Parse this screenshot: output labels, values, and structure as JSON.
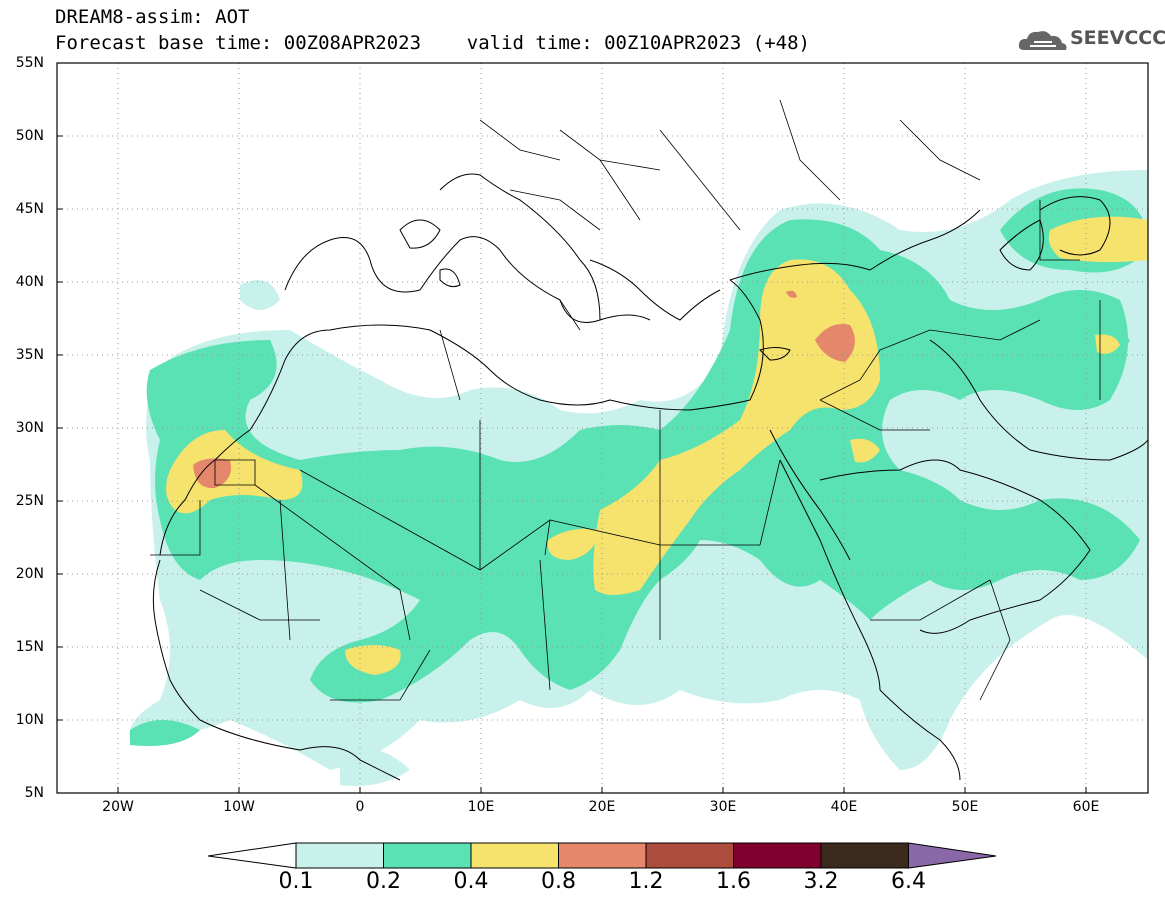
{
  "header": {
    "title_line1": "DREAM8-assim: AOT",
    "title_line2": "Forecast base time: 00Z08APR2023    valid time: 00Z10APR2023 (+48)",
    "logo_text": "SEEVCCC"
  },
  "map": {
    "lat_labels": [
      "55N",
      "50N",
      "45N",
      "40N",
      "35N",
      "30N",
      "25N",
      "20N",
      "15N",
      "10N",
      "5N"
    ],
    "lon_labels": [
      "20W",
      "10W",
      "0",
      "10E",
      "20E",
      "30E",
      "40E",
      "50E",
      "60E"
    ]
  },
  "legend": {
    "ticks": [
      "0.1",
      "0.2",
      "0.4",
      "0.8",
      "1.2",
      "1.6",
      "3.2",
      "6.4"
    ],
    "colors": [
      "#c8f1ec",
      "#5ae1b4",
      "#f5e36e",
      "#e5876a",
      "#ab4c3c",
      "#80002e",
      "#3b2a1c",
      "#8a68a7"
    ]
  }
}
